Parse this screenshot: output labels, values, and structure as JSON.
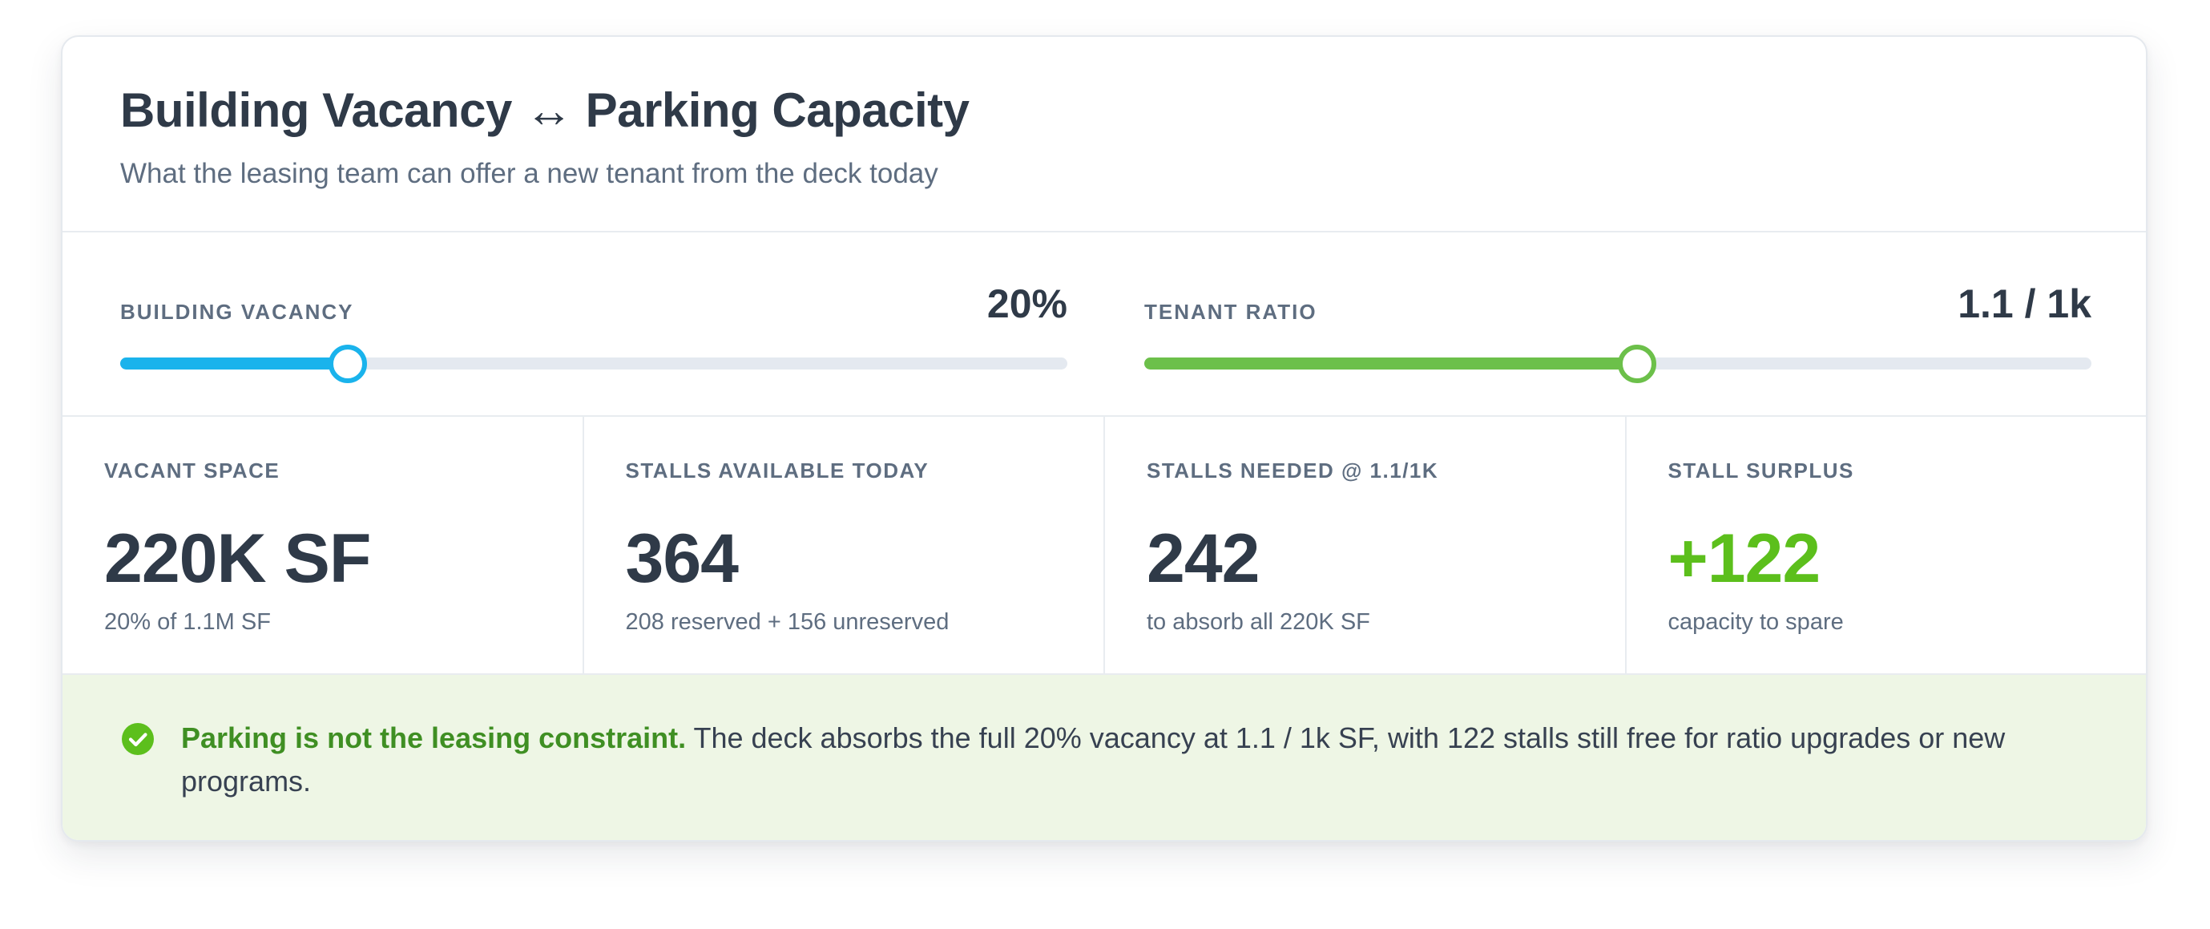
{
  "header": {
    "title": "Building Vacancy ↔ Parking Capacity",
    "subtitle": "What the leasing team can offer a new tenant from the deck today"
  },
  "sliders": [
    {
      "label": "BUILDING VACANCY",
      "value_text": "20%",
      "level_fraction": 0.24,
      "color": "#1ab3ec"
    },
    {
      "label": "TENANT RATIO",
      "value_text": "1.1 / 1k",
      "level_fraction": 0.52,
      "color": "#6cc04a"
    }
  ],
  "metrics": [
    {
      "label": "VACANT SPACE",
      "value": "220K SF",
      "note": "20% of 1.1M SF",
      "color": "#2f3a48"
    },
    {
      "label": "STALLS AVAILABLE TODAY",
      "value": "364",
      "note": "208 reserved + 156 unreserved",
      "color": "#2f3a48"
    },
    {
      "label": "STALLS NEEDED @ 1.1/1K",
      "value": "242",
      "note": "to absorb all 220K SF",
      "color": "#2f3a48"
    },
    {
      "label": "STALL SURPLUS",
      "value": "+122",
      "note": "capacity to spare",
      "color": "#5cbf1c"
    }
  ],
  "callout": {
    "icon": "check-circle-icon",
    "strong": "Parking is not the leasing constraint.",
    "text": " The deck absorbs the full 20% vacancy at 1.1 / 1k SF, with 122 stalls still free for ratio upgrades or new programs.",
    "icon_color": "#5cbf1c"
  }
}
